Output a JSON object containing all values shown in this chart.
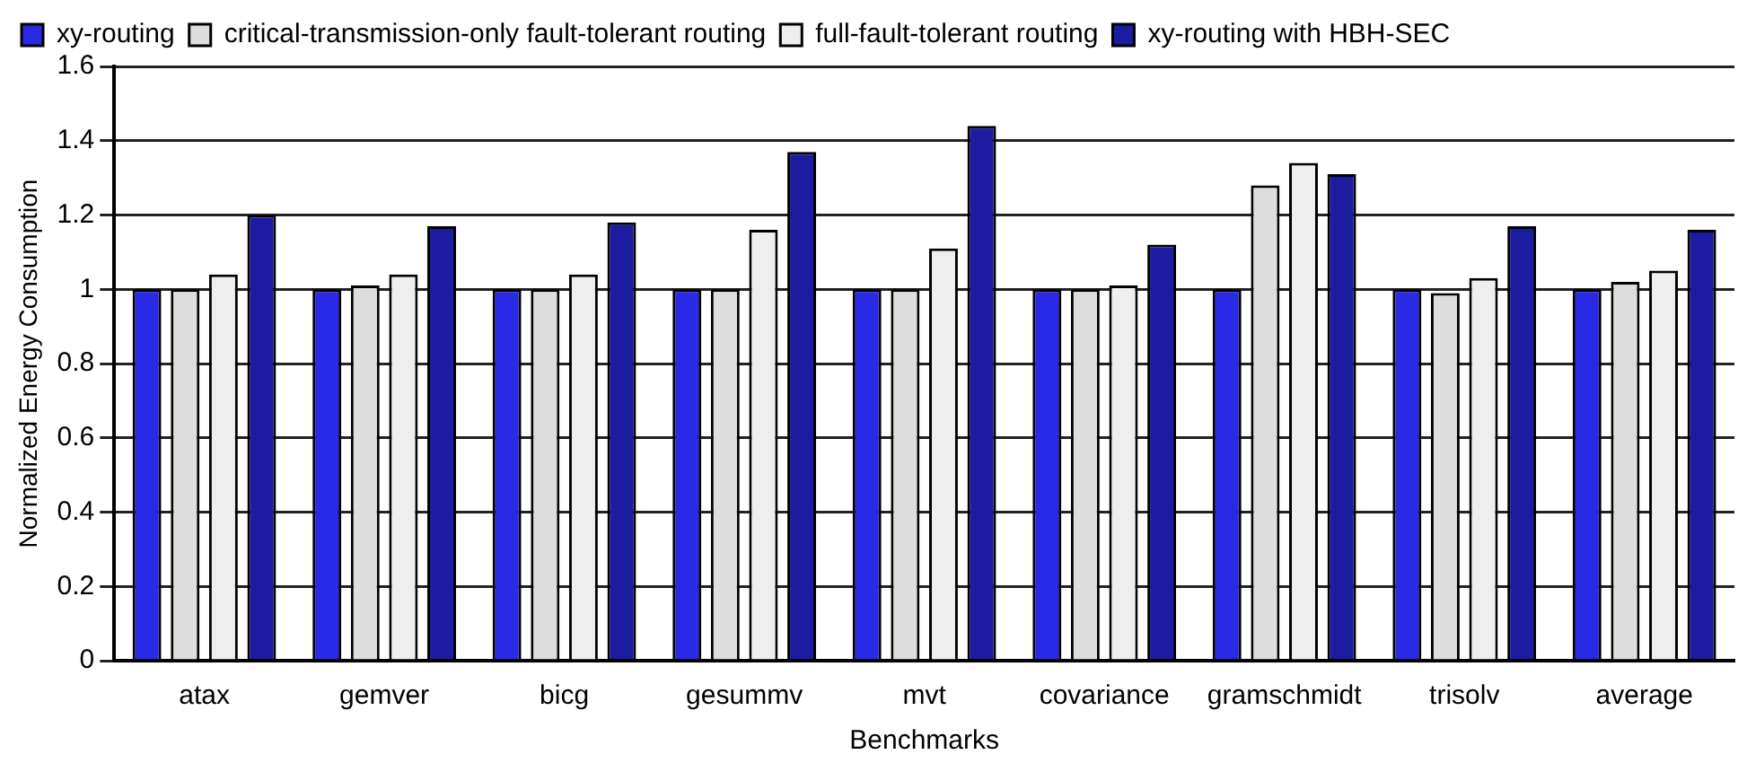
{
  "chart_data": {
    "type": "bar",
    "xlabel": "Benchmarks",
    "ylabel": "Normalized Energy Consumption",
    "categories": [
      "atax",
      "gemver",
      "bicg",
      "gesummv",
      "mvt",
      "covariance",
      "gramschmidt",
      "trisolv",
      "average"
    ],
    "series": [
      {
        "name": "xy-routing",
        "color": "#2a2ae6",
        "values": [
          1,
          1,
          1,
          1,
          1,
          1,
          1,
          1,
          1
        ]
      },
      {
        "name": "critical-transmission-only fault-tolerant routing",
        "color": "#dddddd",
        "values": [
          1.0,
          1.01,
          1.0,
          1.0,
          1.0,
          1.0,
          1.28,
          0.99,
          1.02
        ]
      },
      {
        "name": "full-fault-tolerant routing",
        "color": "#eeeeee",
        "values": [
          1.04,
          1.04,
          1.04,
          1.16,
          1.11,
          1.01,
          1.34,
          1.03,
          1.05
        ]
      },
      {
        "name": "xy-routing with HBH-SEC",
        "color": "#1c1ca0",
        "values": [
          1.2,
          1.17,
          1.18,
          1.37,
          1.44,
          1.12,
          1.31,
          1.17,
          1.16
        ]
      }
    ],
    "ylim": [
      0,
      1.6
    ],
    "yticks": [
      0,
      0.2,
      0.4,
      0.6,
      0.8,
      1,
      1.2,
      1.4,
      1.6
    ],
    "grid": "y",
    "legend": "top left"
  }
}
